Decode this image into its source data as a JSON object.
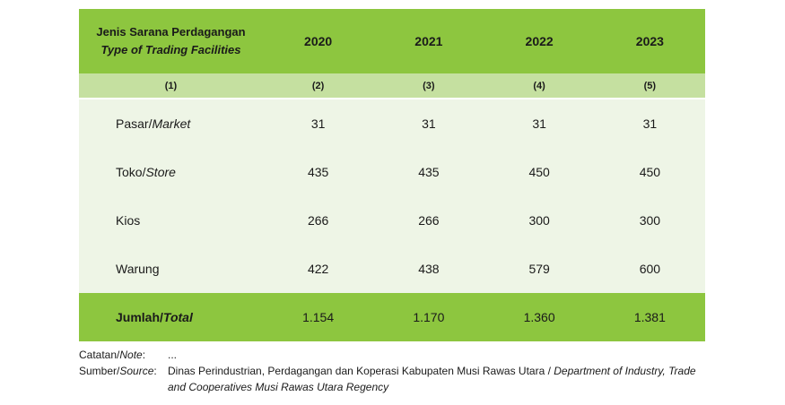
{
  "table": {
    "header": {
      "label_id": "Jenis Sarana Perdagangan",
      "label_en": "Type of Trading Facilities",
      "years": [
        "2020",
        "2021",
        "2022",
        "2023"
      ]
    },
    "col_numbers": [
      "(1)",
      "(2)",
      "(3)",
      "(4)",
      "(5)"
    ],
    "rows": [
      {
        "name": "Pasar/",
        "name_en": "Market",
        "values": [
          "31",
          "31",
          "31",
          "31"
        ]
      },
      {
        "name": "Toko/",
        "name_en": "Store",
        "values": [
          "435",
          "435",
          "450",
          "450"
        ]
      },
      {
        "name": "Kios",
        "name_en": "",
        "values": [
          "266",
          "266",
          "300",
          "300"
        ]
      },
      {
        "name": "Warung",
        "name_en": "",
        "values": [
          "422",
          "438",
          "579",
          "600"
        ]
      }
    ],
    "total": {
      "label": "Jumlah/",
      "label_en": "Total",
      "values": [
        "1.154",
        "1.170",
        "1.360",
        "1.381"
      ]
    }
  },
  "notes": {
    "note_label": "Catatan/",
    "note_label_en": "Note",
    "note_value": "...",
    "source_label": "Sumber/",
    "source_label_en": "Source",
    "source_id": "Dinas Perindustrian, Perdagangan dan Koperasi  Kabupaten Musi Rawas Utara / ",
    "source_en": "Department of Industry, Trade and Cooperatives Musi Rawas Utara Regency"
  }
}
